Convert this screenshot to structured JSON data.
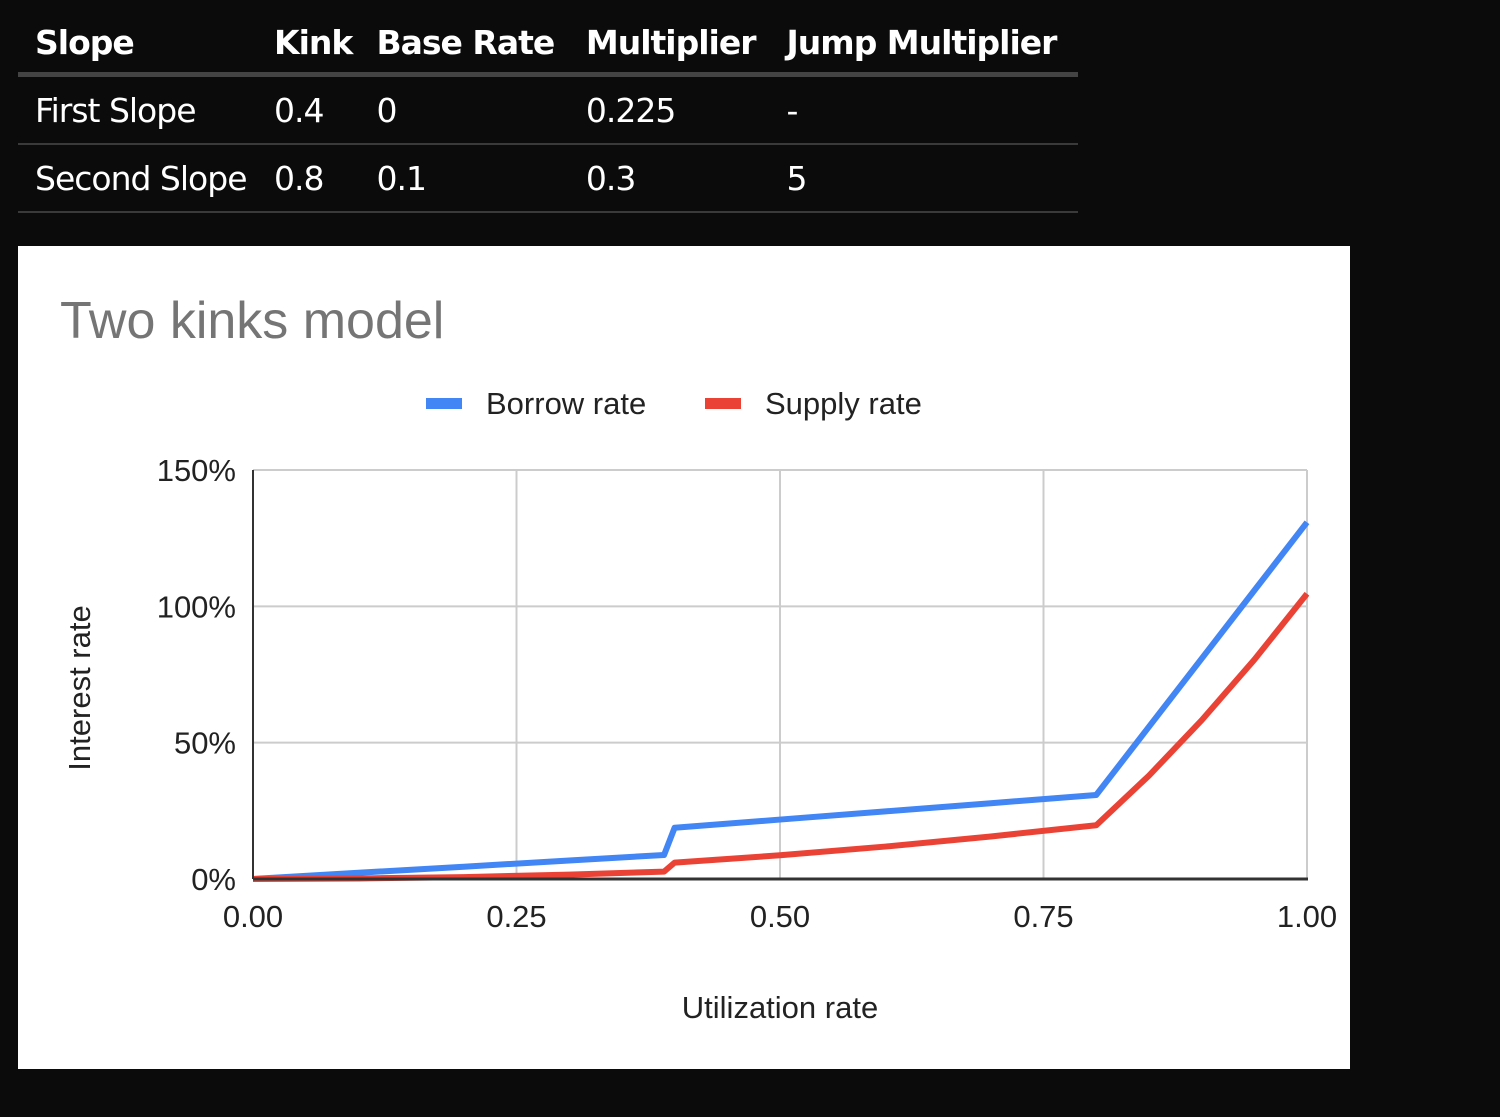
{
  "table": {
    "headers": [
      "Slope",
      "Kink",
      "Base Rate",
      "Multiplier",
      "Jump Multiplier"
    ],
    "rows": [
      [
        "First Slope",
        "0.4",
        "0",
        "0.225",
        "-"
      ],
      [
        "Second Slope",
        "0.8",
        "0.1",
        "0.3",
        "5"
      ]
    ]
  },
  "chart_data": {
    "type": "line",
    "title": "Two kinks model",
    "xlabel": "Utilization rate",
    "ylabel": "Interest rate",
    "xlim": [
      0,
      1
    ],
    "ylim": [
      0,
      150
    ],
    "x_ticks": [
      "0.00",
      "0.25",
      "0.50",
      "0.75",
      "1.00"
    ],
    "y_ticks": [
      "0%",
      "50%",
      "100%",
      "150%"
    ],
    "grid": true,
    "legend": "top",
    "x": [
      0,
      0.1,
      0.2,
      0.3,
      0.39,
      0.4,
      0.5,
      0.6,
      0.7,
      0.8,
      0.85,
      0.9,
      0.95,
      1.0
    ],
    "series": [
      {
        "name": "Borrow rate",
        "color": "#4285f4",
        "values": [
          0,
          2.3,
          4.5,
          6.8,
          8.8,
          18.8,
          21.8,
          24.8,
          27.8,
          30.8,
          55.8,
          80.8,
          105.8,
          130.8
        ]
      },
      {
        "name": "Supply rate",
        "color": "#ea4335",
        "values": [
          0,
          0.2,
          0.7,
          1.6,
          2.7,
          6.0,
          8.7,
          11.9,
          15.6,
          19.7,
          37.9,
          58.2,
          80.4,
          104.6
        ]
      }
    ]
  }
}
